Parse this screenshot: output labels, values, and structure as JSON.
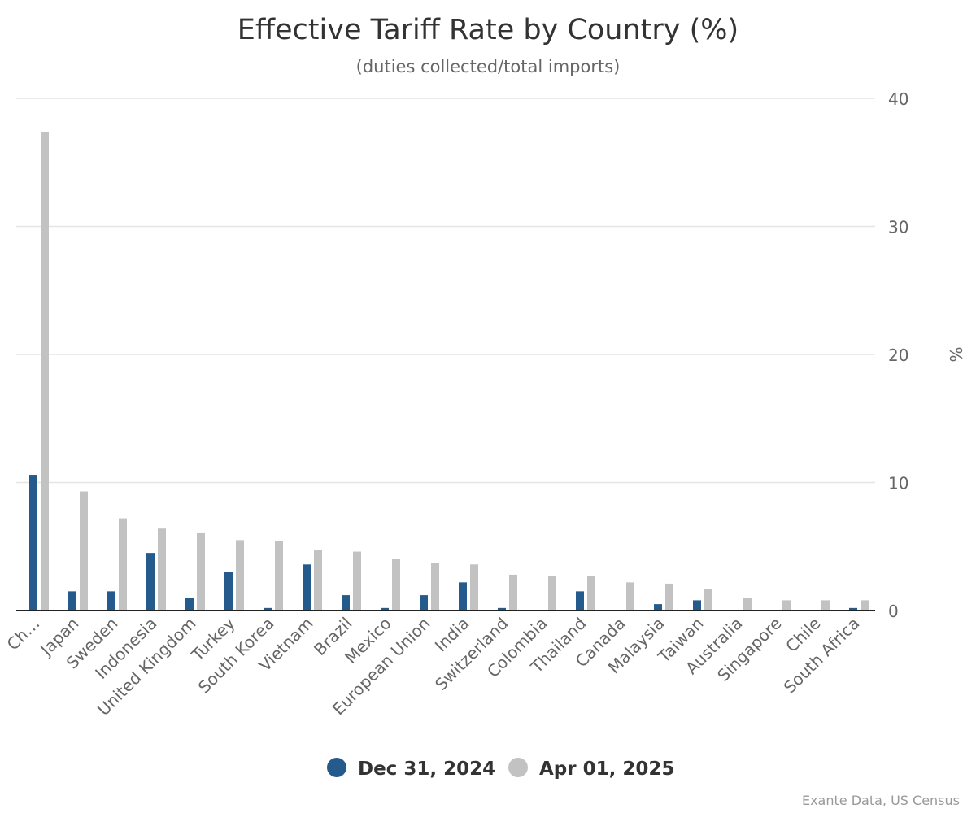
{
  "chart_data": {
    "type": "bar",
    "title": "Effective Tariff Rate by Country (%)",
    "subtitle": "(duties collected/total imports)",
    "ylabel": "%",
    "ylim": [
      0,
      40
    ],
    "yticks": [
      0,
      10,
      20,
      30,
      40
    ],
    "grid": true,
    "legend_position": "bottom-center",
    "categories": [
      "Ch…",
      "Japan",
      "Sweden",
      "Indonesia",
      "United Kingdom",
      "Turkey",
      "South Korea",
      "Vietnam",
      "Brazil",
      "Mexico",
      "European Union",
      "India",
      "Switzerland",
      "Colombia",
      "Thailand",
      "Canada",
      "Malaysia",
      "Taiwan",
      "Australia",
      "Singapore",
      "Chile",
      "South Africa"
    ],
    "series": [
      {
        "name": "Dec 31, 2024",
        "color": "#255b8c",
        "values": [
          10.6,
          1.5,
          1.5,
          4.5,
          1.0,
          3.0,
          0.2,
          3.6,
          1.2,
          0.2,
          1.2,
          2.2,
          0.2,
          0.0,
          1.5,
          0.0,
          0.5,
          0.8,
          0.0,
          0.0,
          0.0,
          0.2
        ]
      },
      {
        "name": "Apr 01, 2025",
        "color": "#c2c2c2",
        "values": [
          37.4,
          9.3,
          7.2,
          6.4,
          6.1,
          5.5,
          5.4,
          4.7,
          4.6,
          4.0,
          3.7,
          3.6,
          2.8,
          2.7,
          2.7,
          2.2,
          2.1,
          1.7,
          1.0,
          0.8,
          0.8,
          0.8
        ]
      }
    ],
    "credit": "Exante Data, US Census"
  }
}
